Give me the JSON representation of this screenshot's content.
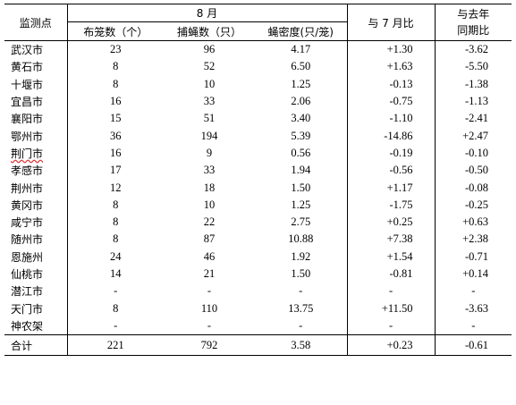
{
  "header": {
    "station_label": "监测点",
    "month_label": "8 月",
    "cages_label": "布笼数（个）",
    "flies_label": "捕蝇数（只）",
    "density_label": "蝇密度(只/笼)",
    "vs_july_label": "与 7 月比",
    "vs_last_year_line1": "与去年",
    "vs_last_year_line2": "同期比"
  },
  "rows": [
    {
      "city": "武汉市",
      "cages": "23",
      "flies": "96",
      "density": "4.17",
      "vs_july": "+1.30",
      "vs_last_year": "-3.62"
    },
    {
      "city": "黄石市",
      "cages": "8",
      "flies": "52",
      "density": "6.50",
      "vs_july": "+1.63",
      "vs_last_year": "-5.50"
    },
    {
      "city": "十堰市",
      "cages": "8",
      "flies": "10",
      "density": "1.25",
      "vs_july": "-0.13",
      "vs_last_year": "-1.38"
    },
    {
      "city": "宜昌市",
      "cages": "16",
      "flies": "33",
      "density": "2.06",
      "vs_july": "-0.75",
      "vs_last_year": "-1.13"
    },
    {
      "city": "襄阳市",
      "cages": "15",
      "flies": "51",
      "density": "3.40",
      "vs_july": "-1.10",
      "vs_last_year": "-2.41"
    },
    {
      "city": "鄂州市",
      "cages": "36",
      "flies": "194",
      "density": "5.39",
      "vs_july": "-14.86",
      "vs_last_year": "+2.47"
    },
    {
      "city": "荆门市",
      "cages": "16",
      "flies": "9",
      "density": "0.56",
      "vs_july": "-0.19",
      "vs_last_year": "-0.10"
    },
    {
      "city": "孝感市",
      "cages": "17",
      "flies": "33",
      "density": "1.94",
      "vs_july": "-0.56",
      "vs_last_year": "-0.50"
    },
    {
      "city": "荆州市",
      "cages": "12",
      "flies": "18",
      "density": "1.50",
      "vs_july": "+1.17",
      "vs_last_year": "-0.08"
    },
    {
      "city": "黄冈市",
      "cages": "8",
      "flies": "10",
      "density": "1.25",
      "vs_july": "-1.75",
      "vs_last_year": "-0.25"
    },
    {
      "city": "咸宁市",
      "cages": "8",
      "flies": "22",
      "density": "2.75",
      "vs_july": "+0.25",
      "vs_last_year": "+0.63"
    },
    {
      "city": "随州市",
      "cages": "8",
      "flies": "87",
      "density": "10.88",
      "vs_july": "+7.38",
      "vs_last_year": "+2.38"
    },
    {
      "city": "恩施州",
      "cages": "24",
      "flies": "46",
      "density": "1.92",
      "vs_july": "+1.54",
      "vs_last_year": "-0.71"
    },
    {
      "city": "仙桃市",
      "cages": "14",
      "flies": "21",
      "density": "1.50",
      "vs_july": "-0.81",
      "vs_last_year": "+0.14"
    },
    {
      "city": "潜江市",
      "cages": "-",
      "flies": "-",
      "density": "-",
      "vs_july": "-",
      "vs_last_year": "-"
    },
    {
      "city": "天门市",
      "cages": "8",
      "flies": "110",
      "density": "13.75",
      "vs_july": "+11.50",
      "vs_last_year": "-3.63"
    },
    {
      "city": "神农架",
      "cages": "-",
      "flies": "-",
      "density": "-",
      "vs_july": "-",
      "vs_last_year": "-"
    }
  ],
  "total": {
    "label": "合计",
    "cages": "221",
    "flies": "792",
    "density": "3.58",
    "vs_july": "+0.23",
    "vs_last_year": "-0.61"
  }
}
